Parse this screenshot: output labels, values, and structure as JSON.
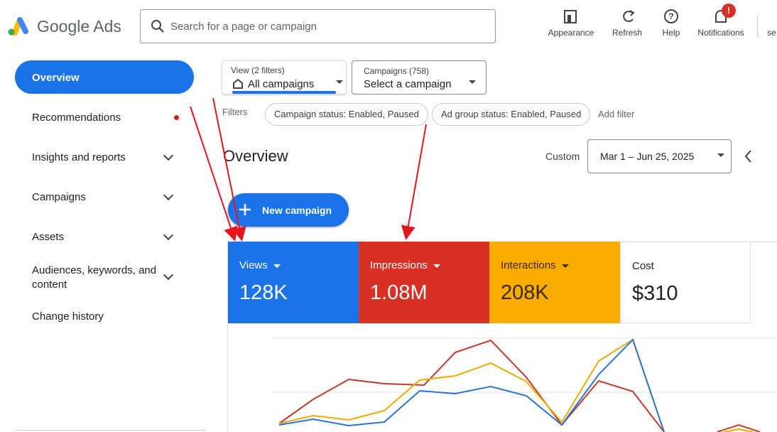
{
  "header": {
    "logo_text": "Google Ads",
    "search_placeholder": "Search for a page or campaign",
    "actions": [
      "Appearance",
      "Refresh",
      "Help",
      "Notifications"
    ],
    "notification_badge": "!",
    "account_cut": "se"
  },
  "sidebar": {
    "items": [
      "Overview",
      "Recommendations",
      "Insights and reports",
      "Campaigns",
      "Assets",
      "Audiences, keywords, and content",
      "Change history"
    ]
  },
  "main": {
    "view_filter": {
      "label": "View (2 filters)",
      "value": "All campaigns"
    },
    "campaign_filter": {
      "label": "Campaigns (758)",
      "value": "Select a campaign"
    },
    "filters": {
      "label": "Filters",
      "chips": [
        "Campaign status: Enabled, Paused",
        "Ad group status: Enabled, Paused"
      ],
      "add": "Add filter"
    },
    "title": "Overview",
    "date": {
      "label": "Custom",
      "value": "Mar 1 – Jun 25, 2025"
    },
    "new_campaign": "New campaign",
    "metrics": [
      {
        "name": "Views",
        "value": "128K"
      },
      {
        "name": "Impressions",
        "value": "1.08M"
      },
      {
        "name": "Interactions",
        "value": "208K"
      },
      {
        "name": "Cost",
        "value": "$310"
      }
    ]
  }
}
